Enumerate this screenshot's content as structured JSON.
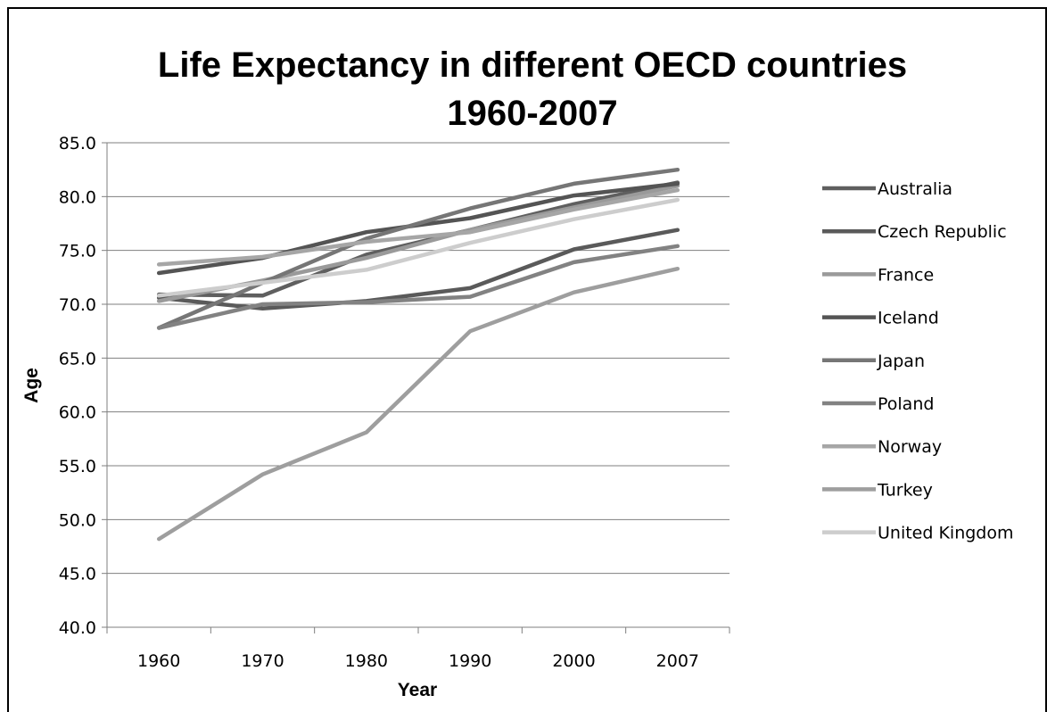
{
  "chart_data": {
    "type": "line",
    "title": "Life Expectancy in different OECD countries",
    "subtitle": "1960-2007",
    "xlabel": "Year",
    "ylabel": "Age",
    "categories": [
      "1960",
      "1970",
      "1980",
      "1990",
      "2000",
      "2007"
    ],
    "ylim": [
      40.0,
      85.0
    ],
    "yticks": [
      "40.0",
      "45.0",
      "50.0",
      "55.0",
      "60.0",
      "65.0",
      "70.0",
      "75.0",
      "80.0",
      "85.0"
    ],
    "grid": true,
    "legend": "right",
    "series": [
      {
        "name": "Australia",
        "color": "#5f5f5f",
        "values": [
          70.9,
          70.8,
          74.6,
          76.9,
          79.3,
          81.3
        ]
      },
      {
        "name": "Czech Republic",
        "color": "#5a5a5a",
        "values": [
          70.6,
          69.6,
          70.3,
          71.5,
          75.1,
          76.9
        ]
      },
      {
        "name": "France",
        "color": "#9a9a9a",
        "values": [
          70.3,
          72.2,
          74.3,
          76.9,
          79.0,
          81.0
        ]
      },
      {
        "name": "Iceland",
        "color": "#545454",
        "values": [
          72.9,
          74.3,
          76.7,
          78.0,
          80.1,
          81.2
        ]
      },
      {
        "name": "Japan",
        "color": "#767676",
        "values": [
          67.8,
          72.0,
          76.1,
          78.9,
          81.2,
          82.5
        ]
      },
      {
        "name": "Poland",
        "color": "#828282",
        "values": [
          67.8,
          70.0,
          70.2,
          70.7,
          73.9,
          75.4
        ]
      },
      {
        "name": "Norway",
        "color": "#a6a6a6",
        "values": [
          73.7,
          74.4,
          75.8,
          76.7,
          78.8,
          80.6
        ]
      },
      {
        "name": "Turkey",
        "color": "#9e9e9e",
        "values": [
          48.2,
          54.2,
          58.1,
          67.5,
          71.1,
          73.3
        ]
      },
      {
        "name": "United Kingdom",
        "color": "#cdcdcd",
        "values": [
          70.8,
          72.0,
          73.2,
          75.7,
          77.9,
          79.7
        ]
      }
    ]
  }
}
